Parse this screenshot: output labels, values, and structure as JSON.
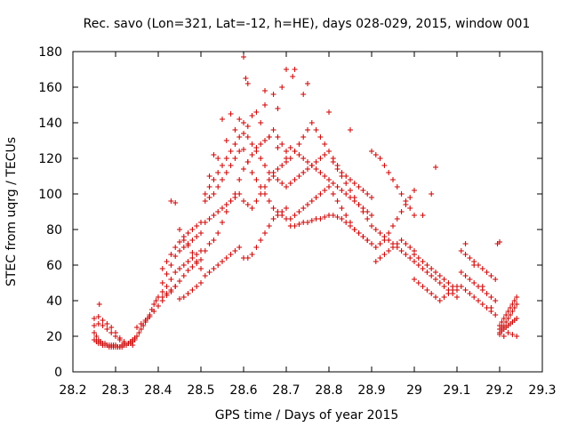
{
  "chart_data": {
    "type": "scatter",
    "title": "Rec. savo (Lon=321, Lat=-12, h=HE), days 028-029, 2015, window 001",
    "xlabel": "GPS time / Days of year 2015",
    "ylabel": "STEC from uqrg / TECUs",
    "xlim": [
      28.2,
      29.3
    ],
    "ylim": [
      0,
      180
    ],
    "xticks": [
      "28.2",
      "28.3",
      "28.4",
      "28.5",
      "28.6",
      "28.7",
      "28.8",
      "28.9",
      "29",
      "29.1",
      "29.2",
      "29.3"
    ],
    "yticks": [
      "0",
      "20",
      "40",
      "60",
      "80",
      "100",
      "120",
      "140",
      "160",
      "180"
    ],
    "grid": false,
    "marker": "+",
    "color": "#cc0000",
    "series": [
      {
        "x": [
          28.25,
          28.255,
          28.26,
          28.265,
          28.27,
          28.275,
          28.28,
          28.285,
          28.29,
          28.295,
          28.3,
          28.305,
          28.31,
          28.315,
          28.32,
          28.325,
          28.33,
          28.335,
          28.34,
          28.345,
          28.25,
          28.255,
          28.26,
          28.265,
          28.27,
          28.275,
          28.28,
          28.285,
          28.29,
          28.295,
          28.3,
          28.305,
          28.31,
          28.315,
          28.32,
          28.325,
          28.33,
          28.335,
          28.34,
          28.345,
          28.25,
          28.26,
          28.27,
          28.28,
          28.29,
          28.3,
          28.31,
          28.32,
          28.33,
          28.34,
          28.25,
          28.26,
          28.27,
          28.28,
          28.29,
          28.3,
          28.31,
          28.32,
          28.33,
          28.34,
          28.262,
          28.35,
          28.355,
          28.36,
          28.365,
          28.37,
          28.375,
          28.38,
          28.385,
          28.39,
          28.395,
          28.4,
          28.35,
          28.36,
          28.37,
          28.38,
          28.39,
          28.4,
          28.41,
          28.42,
          28.43,
          28.44,
          28.45,
          28.46,
          28.47,
          28.48,
          28.49,
          28.5,
          28.41,
          28.42,
          28.43,
          28.44,
          28.45,
          28.46,
          28.47,
          28.48,
          28.49,
          28.5,
          28.41,
          28.42,
          28.43,
          28.44,
          28.45,
          28.46,
          28.47,
          28.48,
          28.49,
          28.5,
          28.41,
          28.42,
          28.43,
          28.44,
          28.45,
          28.46,
          28.47,
          28.48,
          28.49,
          28.5,
          28.41,
          28.42,
          28.43,
          28.44,
          28.45,
          28.46,
          28.47,
          28.48,
          28.49,
          28.5,
          28.43,
          28.44,
          28.45,
          28.46,
          28.47,
          28.48,
          28.49,
          28.5,
          28.51,
          28.52,
          28.53,
          28.54,
          28.55,
          28.56,
          28.57,
          28.58,
          28.59,
          28.6,
          28.61,
          28.62,
          28.63,
          28.64,
          28.65,
          28.66,
          28.67,
          28.68,
          28.69,
          28.7,
          28.51,
          28.52,
          28.53,
          28.54,
          28.55,
          28.56,
          28.57,
          28.58,
          28.59,
          28.6,
          28.61,
          28.62,
          28.63,
          28.64,
          28.65,
          28.66,
          28.67,
          28.68,
          28.69,
          28.7,
          28.51,
          28.52,
          28.53,
          28.54,
          28.55,
          28.56,
          28.57,
          28.58,
          28.59,
          28.6,
          28.61,
          28.62,
          28.63,
          28.64,
          28.65,
          28.66,
          28.67,
          28.68,
          28.69,
          28.7,
          28.51,
          28.52,
          28.53,
          28.54,
          28.55,
          28.56,
          28.57,
          28.58,
          28.59,
          28.6,
          28.61,
          28.62,
          28.63,
          28.64,
          28.65,
          28.66,
          28.67,
          28.68,
          28.69,
          28.7,
          28.51,
          28.52,
          28.53,
          28.54,
          28.55,
          28.56,
          28.57,
          28.58,
          28.59,
          28.6,
          28.61,
          28.62,
          28.63,
          28.64,
          28.65,
          28.66,
          28.67,
          28.68,
          28.69,
          28.7,
          28.52,
          28.54,
          28.56,
          28.58,
          28.6,
          28.62,
          28.64,
          28.66,
          28.68,
          28.7,
          28.53,
          28.55,
          28.57,
          28.59,
          28.61,
          28.63,
          28.65,
          28.67,
          28.69,
          28.6,
          28.605,
          28.61,
          28.65,
          28.68,
          28.7,
          28.715,
          28.72,
          28.74,
          28.75,
          28.71,
          28.72,
          28.73,
          28.74,
          28.75,
          28.76,
          28.77,
          28.78,
          28.79,
          28.8,
          28.81,
          28.82,
          28.83,
          28.84,
          28.85,
          28.86,
          28.87,
          28.88,
          28.89,
          28.9,
          28.71,
          28.72,
          28.73,
          28.74,
          28.75,
          28.76,
          28.77,
          28.78,
          28.79,
          28.8,
          28.81,
          28.82,
          28.83,
          28.84,
          28.85,
          28.86,
          28.87,
          28.88,
          28.89,
          28.9,
          28.71,
          28.72,
          28.73,
          28.74,
          28.75,
          28.76,
          28.77,
          28.78,
          28.79,
          28.8,
          28.81,
          28.82,
          28.83,
          28.84,
          28.85,
          28.86,
          28.87,
          28.88,
          28.89,
          28.9,
          28.71,
          28.72,
          28.73,
          28.74,
          28.75,
          28.76,
          28.77,
          28.78,
          28.79,
          28.8,
          28.81,
          28.82,
          28.83,
          28.84,
          28.85,
          28.86,
          28.87,
          28.88,
          28.89,
          28.9,
          28.71,
          28.72,
          28.73,
          28.74,
          28.75,
          28.76,
          28.77,
          28.78,
          28.79,
          28.8,
          28.81,
          28.82,
          28.83,
          28.84,
          28.85,
          28.86,
          28.87,
          28.88,
          28.89,
          28.9,
          28.8,
          28.85,
          28.9,
          28.91,
          28.92,
          28.93,
          28.94,
          28.95,
          28.96,
          28.97,
          28.98,
          28.99,
          28.91,
          28.92,
          28.93,
          28.94,
          28.95,
          28.96,
          28.97,
          28.98,
          28.99,
          29.0,
          28.91,
          28.92,
          28.93,
          28.94,
          28.95,
          28.96,
          28.97,
          28.98,
          28.99,
          29.0,
          28.91,
          28.92,
          28.93,
          28.94,
          28.95,
          28.96,
          28.97,
          28.98,
          28.99,
          29.0,
          29.0,
          29.01,
          29.02,
          29.03,
          29.04,
          29.05,
          29.06,
          29.07,
          29.08,
          29.09,
          29.1,
          29.0,
          29.01,
          29.02,
          29.03,
          29.04,
          29.05,
          29.06,
          29.07,
          29.08,
          29.09,
          29.1,
          29.0,
          29.01,
          29.02,
          29.03,
          29.04,
          29.05,
          29.06,
          29.07,
          29.08,
          29.09,
          29.1,
          29.02,
          29.05,
          29.04,
          29.11,
          29.12,
          29.13,
          29.14,
          29.15,
          29.16,
          29.17,
          29.18,
          29.19,
          29.11,
          29.12,
          29.13,
          29.14,
          29.15,
          29.16,
          29.17,
          29.18,
          29.19,
          29.11,
          29.12,
          29.13,
          29.14,
          29.15,
          29.16,
          29.17,
          29.18,
          29.19,
          29.12,
          29.14,
          29.16,
          29.18,
          29.2,
          29.205,
          29.21,
          29.215,
          29.22,
          29.225,
          29.23,
          29.235,
          29.24,
          29.2,
          29.205,
          29.21,
          29.215,
          29.22,
          29.225,
          29.23,
          29.235,
          29.24,
          29.2,
          29.205,
          29.21,
          29.215,
          29.22,
          29.225,
          29.23,
          29.235,
          29.24,
          29.2,
          29.21,
          29.22,
          29.23,
          29.24,
          29.195,
          29.2
        ],
        "y": [
          18,
          17,
          16,
          16,
          15,
          15,
          15,
          14,
          14,
          14,
          14,
          14,
          14,
          15,
          15,
          15,
          16,
          17,
          18,
          19,
          22,
          20,
          18,
          17,
          16,
          16,
          15,
          15,
          15,
          15,
          15,
          14,
          14,
          14,
          15,
          15,
          16,
          16,
          17,
          18,
          26,
          27,
          26,
          24,
          22,
          20,
          18,
          16,
          16,
          17,
          30,
          31,
          29,
          27,
          25,
          22,
          19,
          17,
          16,
          15,
          38,
          20,
          22,
          24,
          26,
          28,
          30,
          32,
          35,
          38,
          40,
          42,
          25,
          27,
          29,
          31,
          34,
          37,
          40,
          43,
          45,
          48,
          51,
          54,
          57,
          59,
          61,
          63,
          45,
          48,
          52,
          56,
          58,
          60,
          62,
          64,
          66,
          68,
          50,
          55,
          60,
          65,
          68,
          70,
          72,
          74,
          76,
          78,
          58,
          62,
          66,
          70,
          73,
          76,
          78,
          80,
          82,
          84,
          42,
          44,
          46,
          48,
          41,
          42,
          44,
          46,
          48,
          50,
          96,
          95,
          80,
          74,
          71,
          67,
          62,
          58,
          68,
          72,
          74,
          78,
          84,
          90,
          96,
          100,
          108,
          114,
          118,
          122,
          126,
          128,
          130,
          132,
          136,
          132,
          128,
          124,
          54,
          56,
          58,
          60,
          62,
          64,
          66,
          68,
          70,
          64,
          64,
          66,
          70,
          74,
          78,
          82,
          86,
          88,
          90,
          92,
          84,
          86,
          88,
          90,
          92,
          94,
          96,
          98,
          100,
          96,
          94,
          92,
          96,
          100,
          104,
          108,
          112,
          114,
          116,
          118,
          96,
          98,
          100,
          104,
          108,
          112,
          116,
          120,
          124,
          125,
          118,
          112,
          108,
          104,
          100,
          96,
          92,
          90,
          88,
          86,
          100,
          104,
          108,
          112,
          116,
          120,
          124,
          128,
          132,
          134,
          132,
          128,
          124,
          120,
          116,
          112,
          110,
          108,
          106,
          104,
          110,
          120,
          130,
          136,
          140,
          144,
          140,
          132,
          126,
          120,
          122,
          142,
          145,
          142,
          138,
          146,
          150,
          156,
          160,
          177,
          165,
          162,
          158,
          148,
          170,
          166,
          170,
          156,
          162,
          126,
          124,
          122,
          120,
          118,
          116,
          114,
          112,
          110,
          108,
          106,
          104,
          102,
          100,
          98,
          96,
          94,
          92,
          90,
          88,
          106,
          108,
          110,
          112,
          114,
          116,
          118,
          120,
          122,
          124,
          118,
          114,
          110,
          106,
          102,
          98,
          94,
          90,
          86,
          82,
          86,
          88,
          90,
          92,
          94,
          96,
          98,
          100,
          102,
          104,
          100,
          96,
          92,
          88,
          84,
          80,
          78,
          76,
          74,
          72,
          120,
          124,
          128,
          132,
          136,
          140,
          136,
          132,
          128,
          124,
          120,
          116,
          112,
          110,
          108,
          106,
          104,
          102,
          100,
          98,
          82,
          82,
          83,
          84,
          84,
          85,
          86,
          86,
          87,
          88,
          88,
          87,
          86,
          84,
          82,
          80,
          78,
          76,
          74,
          72,
          146,
          136,
          124,
          80,
          78,
          76,
          74,
          72,
          70,
          68,
          66,
          64,
          70,
          72,
          74,
          78,
          82,
          86,
          90,
          94,
          98,
          102,
          122,
          120,
          116,
          112,
          108,
          104,
          100,
          96,
          92,
          88,
          62,
          64,
          66,
          68,
          70,
          72,
          74,
          72,
          70,
          68,
          52,
          50,
          48,
          46,
          44,
          42,
          40,
          42,
          44,
          46,
          48,
          62,
          60,
          58,
          56,
          54,
          52,
          50,
          48,
          46,
          44,
          42,
          66,
          64,
          62,
          60,
          58,
          56,
          54,
          52,
          50,
          48,
          46,
          88,
          115,
          100,
          68,
          66,
          64,
          62,
          60,
          58,
          56,
          54,
          52,
          48,
          46,
          44,
          42,
          40,
          38,
          36,
          34,
          32,
          56,
          54,
          52,
          50,
          48,
          46,
          44,
          42,
          40,
          72,
          60,
          48,
          36,
          26,
          28,
          30,
          32,
          34,
          36,
          38,
          40,
          42,
          24,
          25,
          26,
          28,
          30,
          32,
          34,
          36,
          38,
          22,
          23,
          24,
          25,
          26,
          27,
          28,
          29,
          30,
          21,
          20,
          22,
          21,
          20,
          72,
          73
        ]
      }
    ]
  }
}
